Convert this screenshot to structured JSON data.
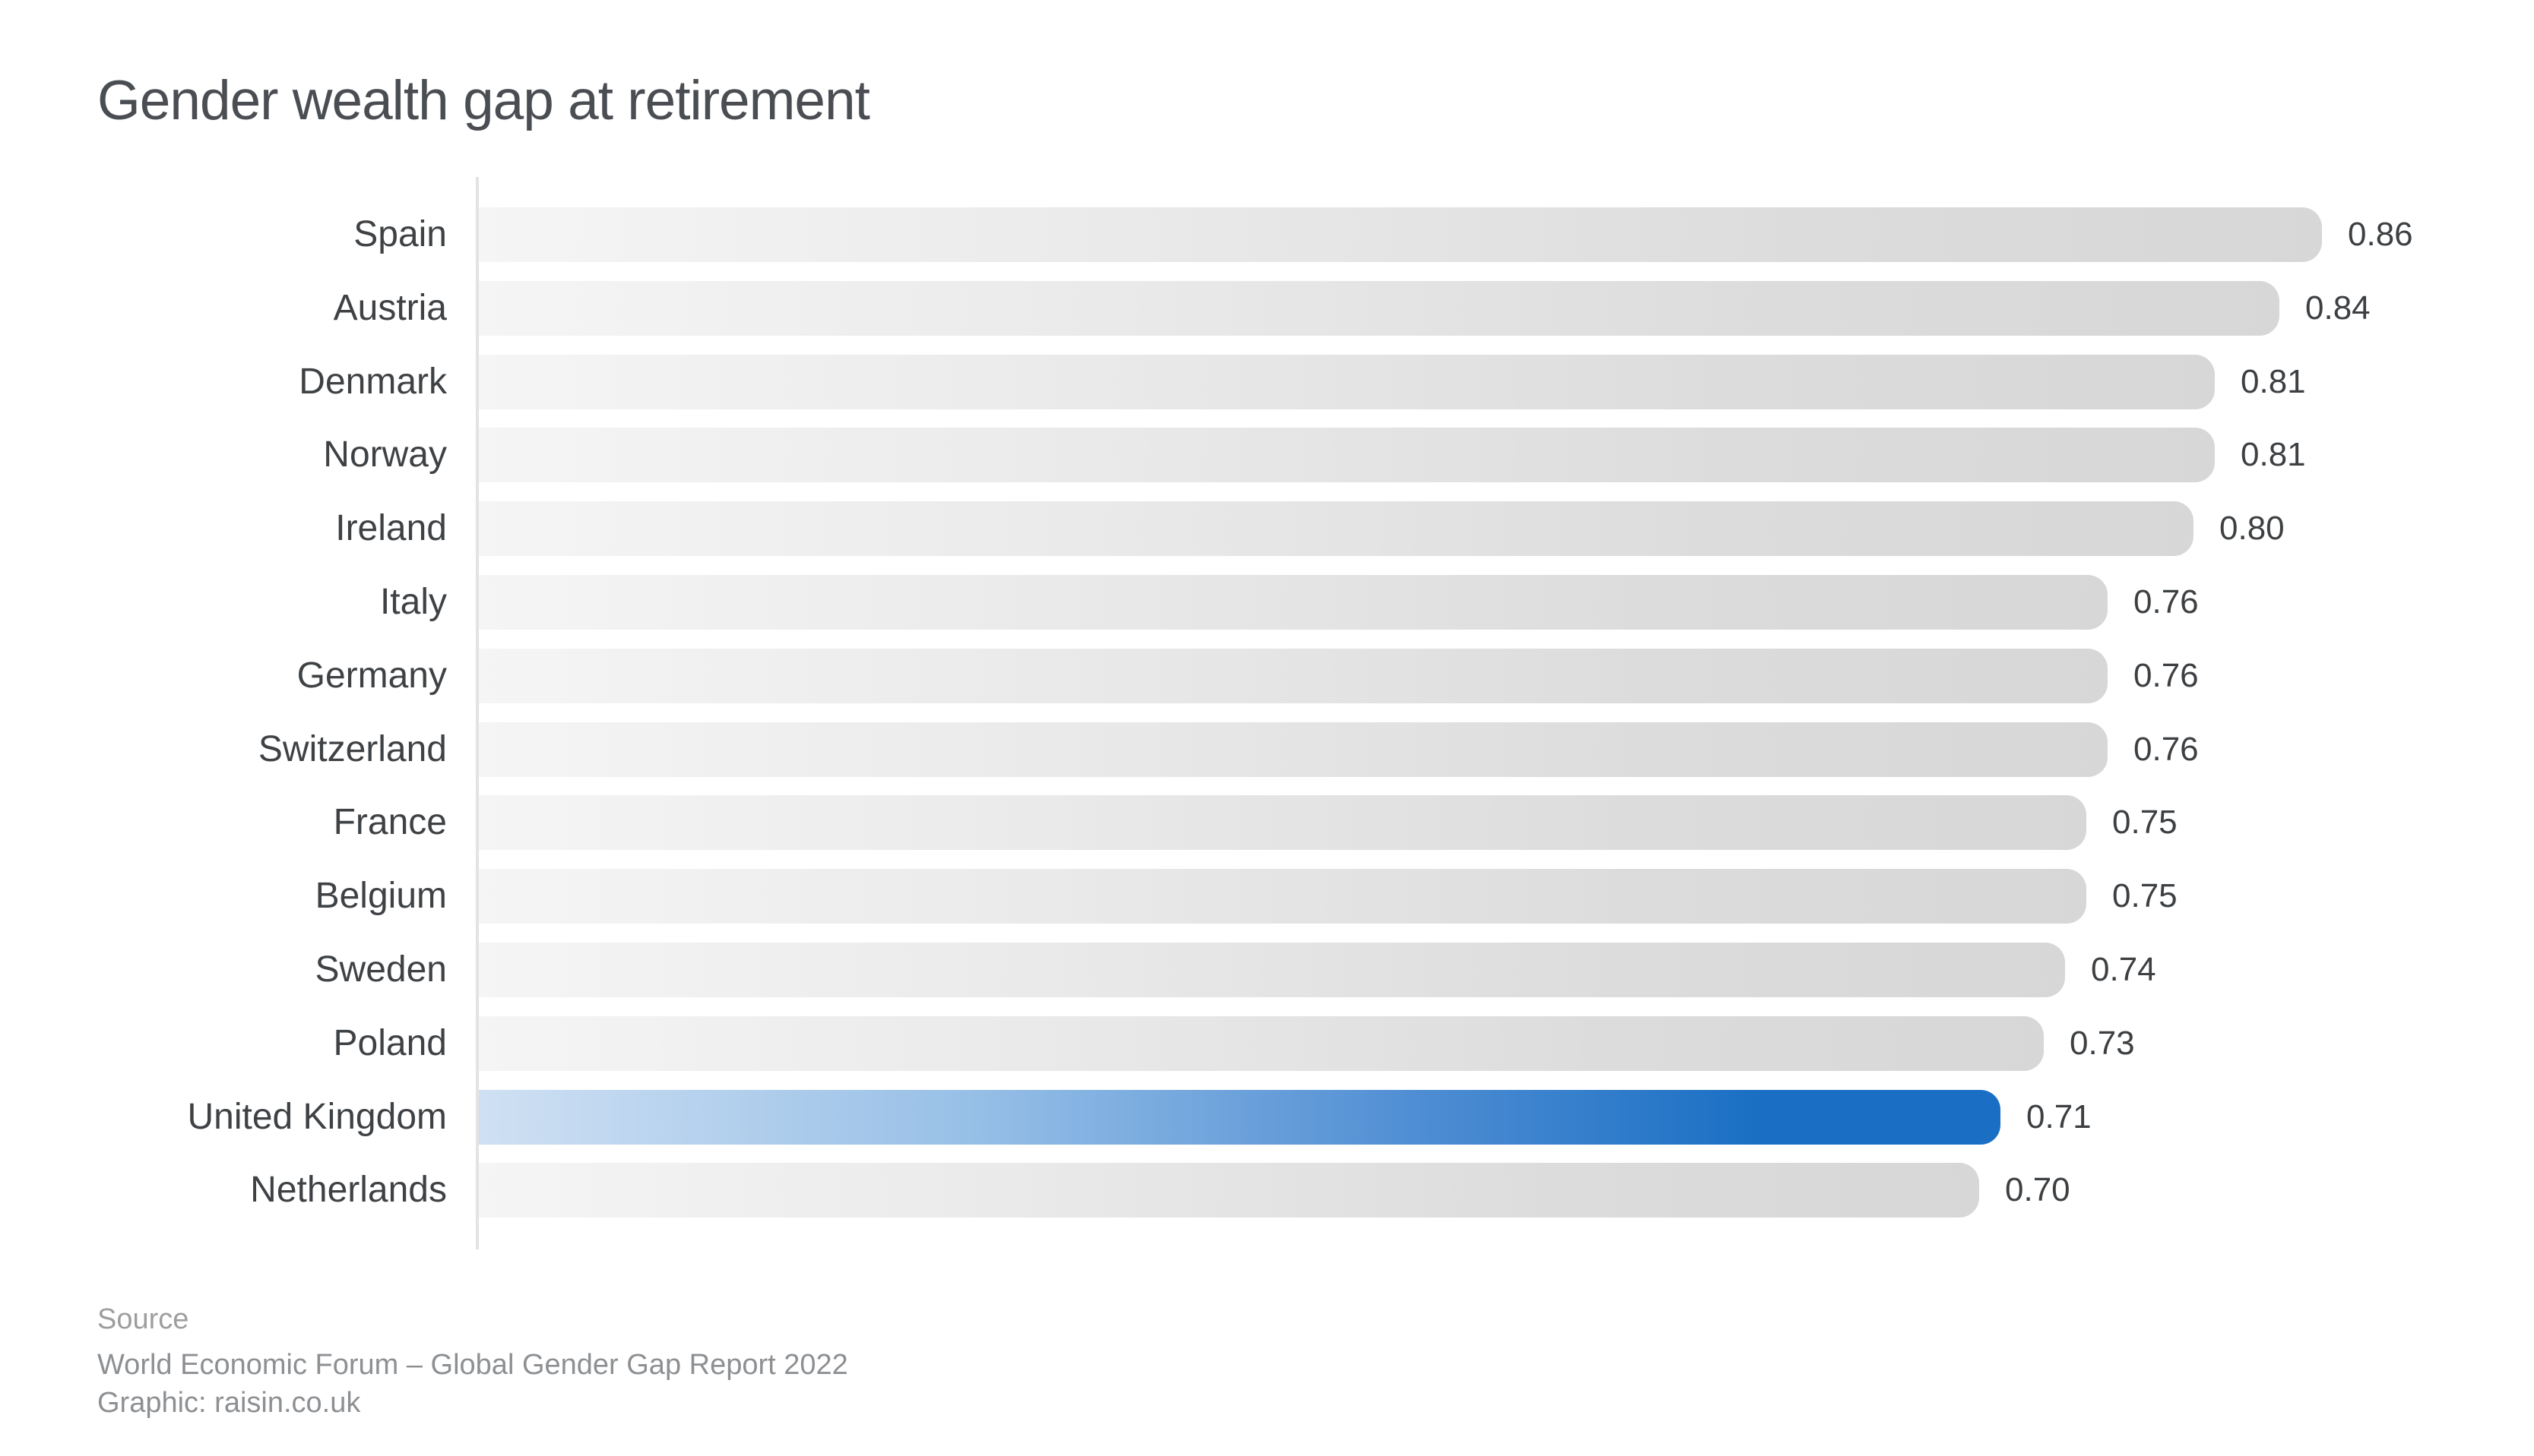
{
  "title": "Gender wealth gap at retirement",
  "source": {
    "label": "Source",
    "line1": "World Economic Forum – Global Gender Gap Report 2022",
    "line2": "Graphic: raisin.co.uk"
  },
  "chart_data": {
    "type": "bar",
    "orientation": "horizontal",
    "title": "Gender wealth gap at retirement",
    "categories": [
      "Spain",
      "Austria",
      "Denmark",
      "Norway",
      "Ireland",
      "Italy",
      "Germany",
      "Switzerland",
      "France",
      "Belgium",
      "Sweden",
      "Poland",
      "United Kingdom",
      "Netherlands"
    ],
    "values": [
      0.86,
      0.84,
      0.81,
      0.81,
      0.8,
      0.76,
      0.76,
      0.76,
      0.75,
      0.75,
      0.74,
      0.73,
      0.71,
      0.7
    ],
    "value_labels": [
      "0.86",
      "0.84",
      "0.81",
      "0.81",
      "0.80",
      "0.76",
      "0.76",
      "0.76",
      "0.75",
      "0.75",
      "0.74",
      "0.73",
      "0.71",
      "0.70"
    ],
    "highlight_category": "United Kingdom",
    "highlight_index": 12,
    "xlim": [
      0,
      0.86
    ],
    "grid": "off",
    "legend": "none",
    "bar_labels_position": "right-of-bar",
    "colors": {
      "bar_gradient_start": "#f5f5f5",
      "bar_gradient_end": "#d7d7d7",
      "highlight_gradient_start": "#cfe0f3",
      "highlight_gradient_end": "#1a6fc4",
      "axis_line": "#e3e3e3",
      "title_text": "#4a4d52",
      "label_text": "#3f4245",
      "value_text": "#3d4043",
      "source_text": "#8d9093",
      "background": "#ffffff"
    }
  }
}
